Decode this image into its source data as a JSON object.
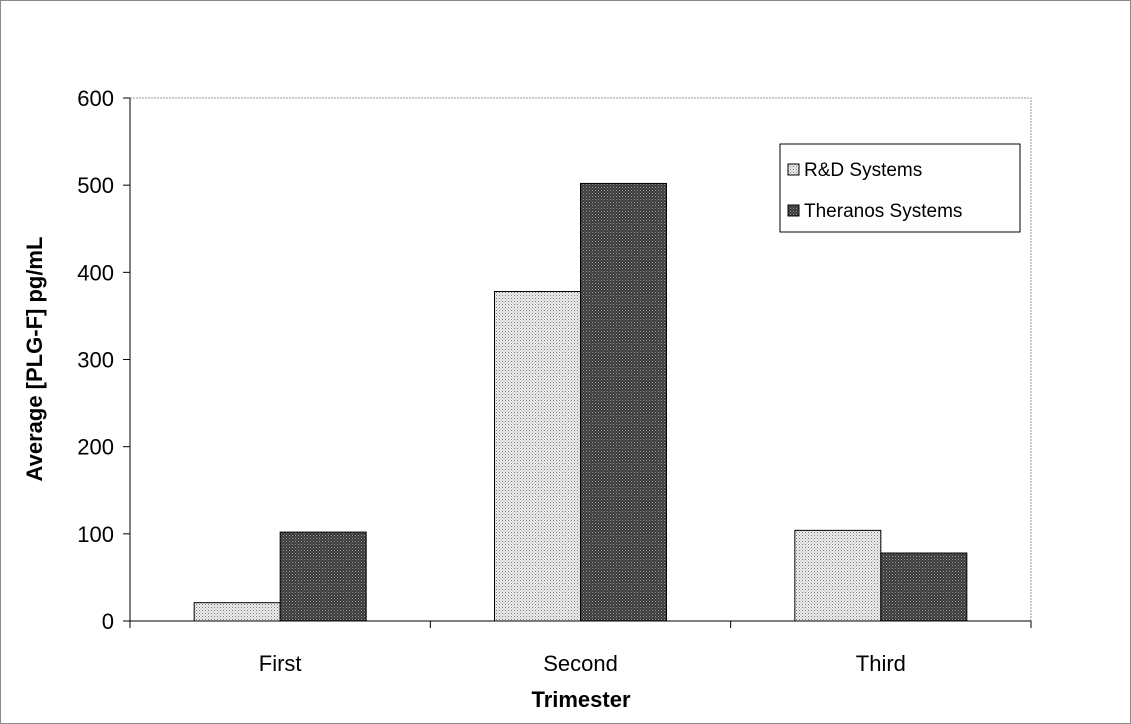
{
  "chart_data": {
    "type": "bar",
    "title": "",
    "xlabel": "Trimester",
    "ylabel": "Average [PLG-F] pg/mL",
    "categories": [
      "First",
      "Second",
      "Third"
    ],
    "series": [
      {
        "name": "R&D Systems",
        "values": [
          21,
          378,
          104
        ],
        "pattern": "light-dots",
        "color": "#d8d8d8"
      },
      {
        "name": "Theranos Systems",
        "values": [
          102,
          502,
          78
        ],
        "pattern": "dark-dots",
        "color": "#5a5a5a"
      }
    ],
    "ylim": [
      0,
      600
    ],
    "yticks": [
      0,
      100,
      200,
      300,
      400,
      500,
      600
    ],
    "ytick_labels": [
      "0",
      "100",
      "200",
      "300",
      "400",
      "500",
      "600"
    ],
    "grid": false,
    "legend_position": "top-right"
  }
}
